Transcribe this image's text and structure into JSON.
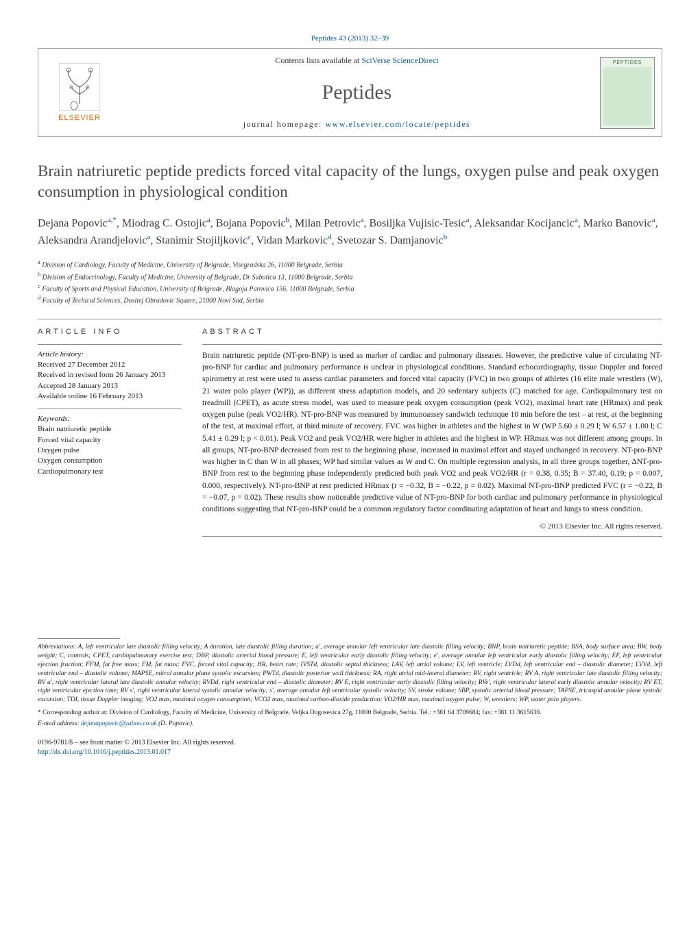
{
  "citation": "Peptides 43 (2013) 32–39",
  "header": {
    "contents_prefix": "Contents lists available at ",
    "contents_link": "SciVerse ScienceDirect",
    "journal": "Peptides",
    "homepage_prefix": "journal homepage: ",
    "homepage_link": "www.elsevier.com/locate/peptides",
    "publisher_name": "ELSEVIER",
    "cover_title": "PEPTIDES"
  },
  "title": "Brain natriuretic peptide predicts forced vital capacity of the lungs, oxygen pulse and peak oxygen consumption in physiological condition",
  "authors_html": "Dejana Popovic<sup>a,*</sup>, Miodrag C. Ostojic<sup>a</sup>, Bojana Popovic<sup>b</sup>, Milan Petrovic<sup>a</sup>, Bosiljka Vujisic-Tesic<sup>a</sup>, Aleksandar Kocijancic<sup>a</sup>, Marko Banovic<sup>a</sup>, Aleksandra Arandjelovic<sup>a</sup>, Stanimir Stojiljkovic<sup>c</sup>, Vidan Markovic<sup>d</sup>, Svetozar S. Damjanovic<sup>b</sup>",
  "affiliations": [
    {
      "sup": "a",
      "text": "Division of Cardiology, Faculty of Medicine, University of Belgrade, Visegradska 26, 11000 Belgrade, Serbia"
    },
    {
      "sup": "b",
      "text": "Division of Endocrinology, Faculty of Medicine, University of Belgrade, Dr Subotica 13, 11000 Belgrade, Serbia"
    },
    {
      "sup": "c",
      "text": "Faculty of Sports and Physical Education, University of Belgrade, Blagoja Parovica 156, 11000 Belgrade, Serbia"
    },
    {
      "sup": "d",
      "text": "Faculty of Techical Sciences, Dositej Obradovic Square, 21000 Novi Sad, Serbia"
    }
  ],
  "article_info": {
    "heading": "ARTICLE INFO",
    "history_label": "Article history:",
    "history": [
      "Received 27 December 2012",
      "Received in revised form 26 January 2013",
      "Accepted 28 January 2013",
      "Available online 16 February 2013"
    ],
    "keywords_label": "Keywords:",
    "keywords": [
      "Brain natriuretic peptide",
      "Forced vital capacity",
      "Oxygen pulse",
      "Oxygen consumption",
      "Cardiopulmonary test"
    ]
  },
  "abstract": {
    "heading": "ABSTRACT",
    "text": "Brain natriuretic peptide (NT-pro-BNP) is used as marker of cardiac and pulmonary diseases. However, the predictive value of circulating NT-pro-BNP for cardiac and pulmonary performance is unclear in physiological conditions. Standard echocardiography, tissue Doppler and forced spirometry at rest were used to assess cardiac parameters and forced vital capacity (FVC) in two groups of athletes (16 elite male wrestlers (W), 21 water polo player (WP)), as different stress adaptation models, and 20 sedentary subjects (C) matched for age. Cardiopulmonary test on treadmill (CPET), as acute stress model, was used to measure peak oxygen consumption (peak VO2), maximal heart rate (HRmax) and peak oxygen pulse (peak VO2/HR). NT-pro-BNP was measured by immunoassey sandwich technique 10 min before the test – at rest, at the beginning of the test, at maximal effort, at third minute of recovery. FVC was higher in athletes and the highest in W (WP 5.60 ± 0.29 l; W 6.57 ± 1.00 l; C 5.41 ± 0.29 l; p < 0.01). Peak VO2 and peak VO2/HR were higher in athletes and the highest in WP. HRmax was not different among groups. In all groups, NT-pro-BNP decreased from rest to the beginning phase, increased in maximal effort and stayed unchanged in recovery. NT-pro-BNP was higher in C than W in all phases; WP had similar values as W and C. On multiple regression analysis, in all three groups together, ΔNT-pro-BNP from rest to the beginning phase independently predicted both peak VO2 and peak VO2/HR (r = 0.38, 0.35; B = 37.40, 0.19; p = 0.007, 0.000, respectively). NT-pro-BNP at rest predicted HRmax (r = −0.32, B = −0.22, p = 0.02). Maximal NT-pro-BNP predicted FVC (r = −0.22, B = −0.07, p = 0.02). These results show noticeable predictive value of NT-pro-BNP for both cardiac and pulmonary performance in physiological conditions suggesting that NT-pro-BNP could be a common regulatory factor coordinating adaptation of heart and lungs to stress condition.",
    "copyright": "© 2013 Elsevier Inc. All rights reserved."
  },
  "footer": {
    "abbrev_lead": "Abbreviations:",
    "abbrev_body": " A, left ventricular late diastolic filling velocity; A duration, late diastolic filling duration; a′, average annular left ventricular late diastolic filling velocity; BNP, brain natriuretic peptide; BSA, body surface area; BW, body weight; C, controls; CPET, cardiopulmonary exercise test; DBP, diastolic arterial blood pressure; E, left ventricular early diastolic filling velocity; e′, average annular left ventricular early diastolic filling velocity; EF, left ventricular ejection fraction; FFM, fat free mass; FM, fat mass; FVC, forced vital capacity; HR, heart rate; IVSTd, diastolic septal thickness; LAV, left atrial volume; LV, left ventricle; LVDd, left ventricular end – diastolic diameter; LVVd, left ventricular end – diastolic volume; MAPSE, mitral annular plane systolic excursion; PWTd, diastolic posterior wall thickness; RA, right atrial mid-lateral diameter; RV, right ventricle; RV A, right ventricular late diastolic filling velocity; RV a′, right ventricular lateral late diastolic annular velocity; RVDd, right ventricular end – diastolic diameter; RV E, right ventricular early diastolic filling velocity; RVe′, right ventricular lateral early diastolic annular velocity; RV ET, right ventricular ejection time; RV s′, right ventricular lateral systolic annular velocity; s′, average annular left ventricular systolic velocity; SV, stroke volume; SBP, systolic arterial blood pressure; TAPSE, tricuspid annular plane systolic excursion; TDI, tissue Doppler imaging; VO2 max, maximal oxygen consumption; VCO2 max, maximal carbon-dioxide production; VO2/HR max, maximal oxygen pulse; W, wrestlers; WP, water polo players.",
    "corr": "* Corresponding author at: Division of Cardiology, Faculty of Medicine, University of Belgrade, Veljka Dugosevica 27g, 11000 Belgrade, Serbia. Tel.: +381 64 3709684; fax: +381 11 3615630.",
    "email_label": "E-mail address: ",
    "email": "dejanapopovic@yahoo.co.uk",
    "email_suffix": " (D. Popovic)."
  },
  "bottom": {
    "line1": "0196-9781/$ – see front matter © 2013 Elsevier Inc. All rights reserved.",
    "doi": "http://dx.doi.org/10.1016/j.peptides.2013.01.017"
  },
  "colors": {
    "link": "#0056a3",
    "elsevier_orange": "#ff6600",
    "rule": "#888888",
    "title_gray": "#4a4a4a"
  }
}
